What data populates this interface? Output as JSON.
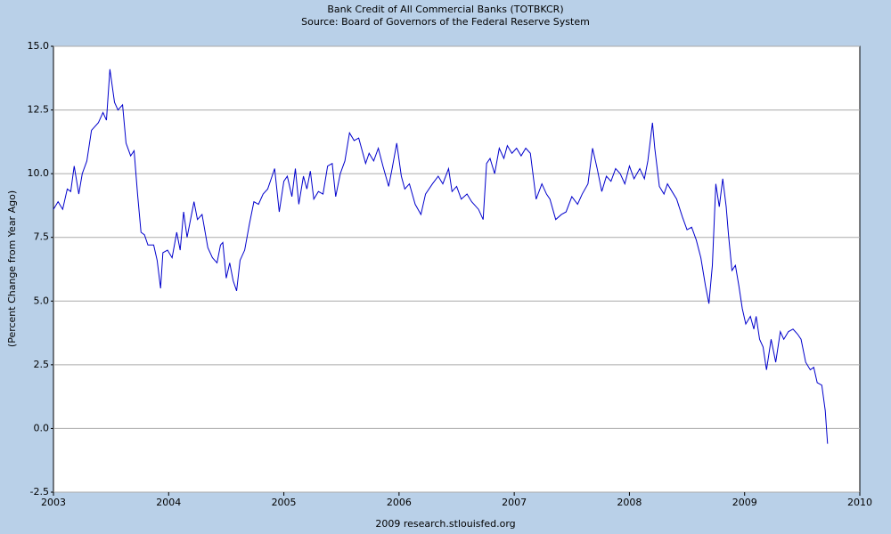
{
  "chart_data": {
    "type": "line",
    "title": "Bank Credit of All Commercial Banks (TOTBKCR)",
    "subtitle": "Source: Board of Governors of the Federal Reserve System",
    "ylabel": "(Percent Change from Year Ago)",
    "footer": "2009 research.stlouisfed.org",
    "color": "#0000cc",
    "grid": true,
    "xlim": [
      2003,
      2010
    ],
    "xticks": [
      2003,
      2004,
      2005,
      2006,
      2007,
      2008,
      2009,
      2010
    ],
    "ylim": [
      -2.5,
      15
    ],
    "yticks": [
      {
        "value": 15,
        "label": "15.0"
      },
      12.5,
      {
        "value": 10,
        "label": "10.0"
      },
      7.5,
      {
        "value": 5,
        "label": "5.0"
      },
      2.5,
      {
        "value": 0,
        "label": "0.0"
      },
      -2.5
    ],
    "x": [
      2003.0,
      2003.04,
      2003.08,
      2003.12,
      2003.15,
      2003.18,
      2003.22,
      2003.25,
      2003.29,
      2003.33,
      2003.39,
      2003.43,
      2003.46,
      2003.49,
      2003.53,
      2003.56,
      2003.6,
      2003.63,
      2003.67,
      2003.7,
      2003.73,
      2003.76,
      2003.79,
      2003.82,
      2003.87,
      2003.9,
      2003.93,
      2003.95,
      2003.99,
      2004.03,
      2004.07,
      2004.1,
      2004.13,
      2004.16,
      2004.22,
      2004.25,
      2004.29,
      2004.34,
      2004.38,
      2004.42,
      2004.45,
      2004.47,
      2004.5,
      2004.53,
      2004.56,
      2004.59,
      2004.62,
      2004.66,
      2004.7,
      2004.74,
      2004.78,
      2004.82,
      2004.86,
      2004.89,
      2004.92,
      2004.96,
      2005.0,
      2005.03,
      2005.07,
      2005.1,
      2005.13,
      2005.17,
      2005.2,
      2005.23,
      2005.26,
      2005.3,
      2005.34,
      2005.38,
      2005.42,
      2005.45,
      2005.49,
      2005.53,
      2005.57,
      2005.61,
      2005.65,
      2005.71,
      2005.74,
      2005.78,
      2005.82,
      2005.86,
      2005.91,
      2005.94,
      2005.98,
      2006.02,
      2006.05,
      2006.09,
      2006.14,
      2006.19,
      2006.23,
      2006.29,
      2006.34,
      2006.38,
      2006.43,
      2006.46,
      2006.5,
      2006.54,
      2006.59,
      2006.63,
      2006.69,
      2006.73,
      2006.76,
      2006.79,
      2006.83,
      2006.87,
      2006.91,
      2006.94,
      2006.98,
      2007.02,
      2007.06,
      2007.1,
      2007.14,
      2007.19,
      2007.24,
      2007.28,
      2007.31,
      2007.36,
      2007.41,
      2007.45,
      2007.5,
      2007.55,
      2007.59,
      2007.64,
      2007.68,
      2007.72,
      2007.76,
      2007.8,
      2007.84,
      2007.88,
      2007.92,
      2007.96,
      2008.0,
      2008.04,
      2008.09,
      2008.13,
      2008.16,
      2008.2,
      2008.22,
      2008.26,
      2008.3,
      2008.33,
      2008.37,
      2008.41,
      2008.46,
      2008.5,
      2008.54,
      2008.58,
      2008.62,
      2008.66,
      2008.69,
      2008.72,
      2008.75,
      2008.78,
      2008.81,
      2008.84,
      2008.86,
      2008.89,
      2008.92,
      2008.95,
      2008.98,
      2009.01,
      2009.05,
      2009.08,
      2009.1,
      2009.13,
      2009.16,
      2009.19,
      2009.23,
      2009.27,
      2009.31,
      2009.34,
      2009.38,
      2009.42,
      2009.46,
      2009.49,
      2009.53,
      2009.57,
      2009.6,
      2009.63,
      2009.67,
      2009.7,
      2009.72
    ],
    "values": [
      8.6,
      8.9,
      8.6,
      9.4,
      9.3,
      10.3,
      9.2,
      10.0,
      10.5,
      11.7,
      12.0,
      12.4,
      12.1,
      14.1,
      12.8,
      12.5,
      12.7,
      11.2,
      10.7,
      10.9,
      9.2,
      7.7,
      7.6,
      7.2,
      7.2,
      6.6,
      5.5,
      6.9,
      7.0,
      6.7,
      7.7,
      7.0,
      8.5,
      7.5,
      8.9,
      8.2,
      8.4,
      7.1,
      6.7,
      6.5,
      7.2,
      7.3,
      5.9,
      6.5,
      5.8,
      5.4,
      6.6,
      7.0,
      8.0,
      8.9,
      8.8,
      9.2,
      9.4,
      9.8,
      10.2,
      8.5,
      9.7,
      9.9,
      9.1,
      10.2,
      8.8,
      9.9,
      9.4,
      10.1,
      9.0,
      9.3,
      9.2,
      10.3,
      10.4,
      9.1,
      10.0,
      10.5,
      11.6,
      11.3,
      11.4,
      10.4,
      10.8,
      10.5,
      11.0,
      10.3,
      9.5,
      10.2,
      11.2,
      9.9,
      9.4,
      9.6,
      8.8,
      8.4,
      9.2,
      9.6,
      9.9,
      9.6,
      10.2,
      9.3,
      9.5,
      9.0,
      9.2,
      8.9,
      8.6,
      8.2,
      10.4,
      10.6,
      10.0,
      11.0,
      10.6,
      11.1,
      10.8,
      11.0,
      10.7,
      11.0,
      10.8,
      9.0,
      9.6,
      9.2,
      9.0,
      8.2,
      8.4,
      8.5,
      9.1,
      8.8,
      9.2,
      9.6,
      11.0,
      10.2,
      9.3,
      9.9,
      9.7,
      10.2,
      10.0,
      9.6,
      10.3,
      9.8,
      10.2,
      9.8,
      10.5,
      12.0,
      11.0,
      9.5,
      9.2,
      9.6,
      9.3,
      9.0,
      8.3,
      7.8,
      7.9,
      7.4,
      6.7,
      5.6,
      4.9,
      6.4,
      9.6,
      8.7,
      9.8,
      8.7,
      7.6,
      6.2,
      6.4,
      5.6,
      4.7,
      4.1,
      4.4,
      3.9,
      4.4,
      3.5,
      3.2,
      2.3,
      3.5,
      2.6,
      3.8,
      3.5,
      3.8,
      3.9,
      3.7,
      3.5,
      2.6,
      2.3,
      2.4,
      1.8,
      1.7,
      0.7,
      -0.6
    ]
  }
}
